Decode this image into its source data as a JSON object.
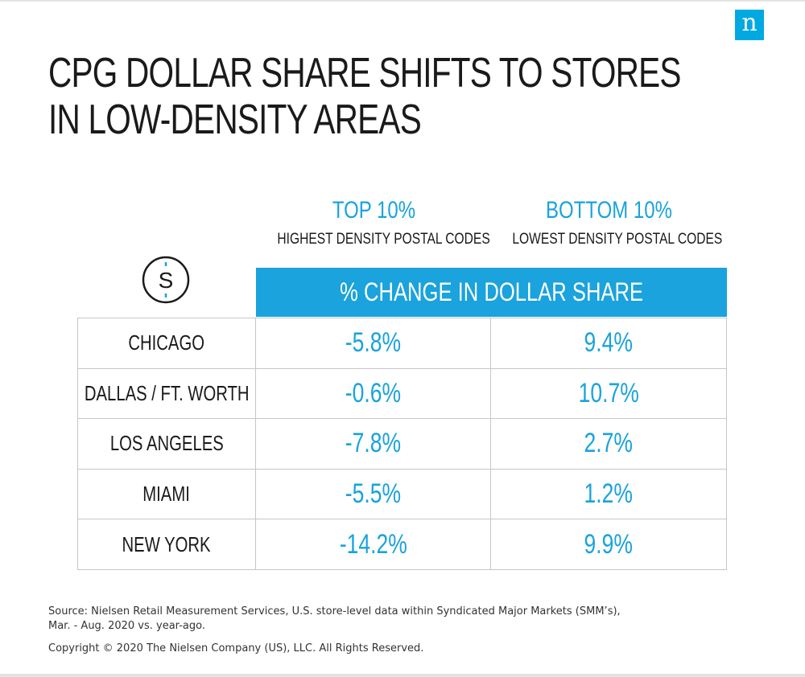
{
  "brand": {
    "logo_letter": "n",
    "accent_color": "#1aa3dc"
  },
  "title_lines": [
    "CPG DOLLAR SHARE SHIFTS TO STORES",
    "IN LOW-DENSITY AREAS"
  ],
  "icon": "dollar-circle-icon",
  "columns": [
    {
      "heading": "TOP 10%",
      "subheading": "HIGHEST DENSITY POSTAL CODES"
    },
    {
      "heading": "BOTTOM 10%",
      "subheading": "LOWEST DENSITY POSTAL CODES"
    }
  ],
  "bar_label": "% CHANGE IN DOLLAR SHARE",
  "chart_data": {
    "type": "table",
    "title": "CPG DOLLAR SHARE SHIFTS TO STORES IN LOW-DENSITY AREAS",
    "measure": "% CHANGE IN DOLLAR SHARE",
    "columns": [
      "TOP 10%",
      "BOTTOM 10%"
    ],
    "rows": [
      {
        "city": "CHICAGO",
        "values": [
          "-5.8%",
          "9.4%"
        ]
      },
      {
        "city": "DALLAS / FT. WORTH",
        "values": [
          "-0.6%",
          "10.7%"
        ]
      },
      {
        "city": "LOS ANGELES",
        "values": [
          "-7.8%",
          "2.7%"
        ]
      },
      {
        "city": "MIAMI",
        "values": [
          "-5.5%",
          "1.2%"
        ]
      },
      {
        "city": "NEW YORK",
        "values": [
          "-14.2%",
          "9.9%"
        ]
      }
    ]
  },
  "source_lines": [
    "Source: Nielsen Retail Measurement Services, U.S. store-level data within Syndicated Major Markets (SMM’s),",
    "Mar. - Aug. 2020 vs. year-ago."
  ],
  "copyright": "Copyright © 2020 The Nielsen Company (US), LLC. All Rights Reserved."
}
